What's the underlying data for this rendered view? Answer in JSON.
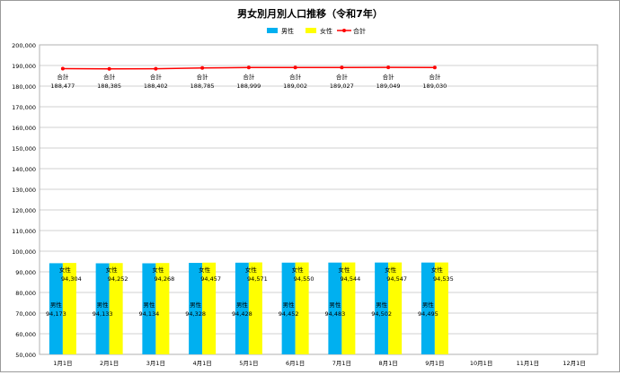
{
  "chart_data": {
    "type": "bar",
    "title": "男女別月別人口推移（令和7年）",
    "categories": [
      "1月1日",
      "2月1日",
      "3月1日",
      "4月1日",
      "5月1日",
      "6月1日",
      "7月1日",
      "8月1日",
      "9月1日",
      "10月1日",
      "11月1日",
      "12月1日"
    ],
    "series": [
      {
        "name": "男性",
        "type": "bar",
        "color": "#00b0f0",
        "label_prefix": "男性",
        "values": [
          94173,
          94133,
          94134,
          94328,
          94428,
          94452,
          94483,
          94502,
          94495,
          null,
          null,
          null
        ],
        "value_labels": [
          "94,173",
          "94,133",
          "94,134",
          "94,328",
          "94,428",
          "94,452",
          "94,483",
          "94,502",
          "94,495"
        ]
      },
      {
        "name": "女性",
        "type": "bar",
        "color": "#ffff00",
        "label_prefix": "女性",
        "values": [
          94304,
          94252,
          94268,
          94457,
          94571,
          94550,
          94544,
          94547,
          94535,
          null,
          null,
          null
        ],
        "value_labels": [
          "94,304",
          "94,252",
          "94,268",
          "94,457",
          "94,571",
          "94,550",
          "94,544",
          "94,547",
          "94,535"
        ]
      },
      {
        "name": "合計",
        "type": "line",
        "color": "#ff0000",
        "label_prefix": "合計",
        "values": [
          188477,
          188385,
          188402,
          188785,
          188999,
          189002,
          189027,
          189049,
          189030,
          null,
          null,
          null
        ],
        "value_labels": [
          "188,477",
          "188,385",
          "188,402",
          "188,785",
          "188,999",
          "189,002",
          "189,027",
          "189,049",
          "189,030"
        ]
      }
    ],
    "ylim": [
      50000,
      200000
    ],
    "ytick_step": 10000,
    "ytick_labels": [
      "50,000",
      "60,000",
      "70,000",
      "80,000",
      "90,000",
      "100,000",
      "110,000",
      "120,000",
      "130,000",
      "140,000",
      "150,000",
      "160,000",
      "170,000",
      "180,000",
      "190,000",
      "200,000"
    ],
    "grid": true,
    "legend_position": "top-center"
  }
}
